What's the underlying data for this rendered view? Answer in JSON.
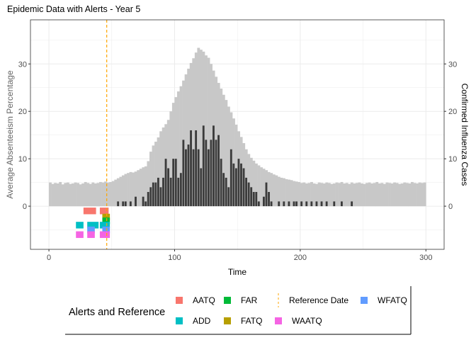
{
  "chart_data": {
    "type": "bar",
    "title": "Epidemic Data with Alerts - Year 5",
    "xlabel": "Time",
    "ylabel_left": "Average Absenteeism Percentage",
    "ylabel_right": "Confirmed Influenza Cases",
    "xlim": [
      -14.7,
      314.5
    ],
    "ylim": [
      -9.1,
      39.3
    ],
    "x_ticks": [
      0,
      100,
      200,
      300
    ],
    "y_ticks": [
      0,
      10,
      20,
      30
    ],
    "grid": true,
    "colors": {
      "absenteeism": "#C8C8C8",
      "cases": "#3B3B3B",
      "reference": "#FFA500",
      "grid": "#EBEBEB"
    },
    "days": [
      1,
      3,
      5,
      7,
      9,
      11,
      13,
      15,
      17,
      19,
      21,
      23,
      25,
      27,
      29,
      31,
      33,
      35,
      37,
      39,
      41,
      43,
      45,
      47,
      49,
      51,
      53,
      55,
      57,
      59,
      61,
      63,
      65,
      67,
      69,
      71,
      73,
      75,
      77,
      79,
      81,
      83,
      85,
      87,
      89,
      91,
      93,
      95,
      97,
      99,
      101,
      103,
      105,
      107,
      109,
      111,
      113,
      115,
      117,
      119,
      121,
      123,
      125,
      127,
      129,
      131,
      133,
      135,
      137,
      139,
      141,
      143,
      145,
      147,
      149,
      151,
      153,
      155,
      157,
      159,
      161,
      163,
      165,
      167,
      169,
      171,
      173,
      175,
      177,
      179,
      181,
      183,
      185,
      187,
      189,
      191,
      193,
      195,
      197,
      199,
      201,
      203,
      205,
      207,
      209,
      211,
      213,
      215,
      217,
      219,
      221,
      223,
      225,
      227,
      229,
      231,
      233,
      235,
      237,
      239,
      241,
      243,
      245,
      247,
      249,
      251,
      253,
      255,
      257,
      259,
      261,
      263,
      265,
      267,
      269,
      271,
      273,
      275,
      277,
      279,
      281,
      283,
      285,
      287,
      289,
      291,
      293,
      295,
      297,
      299
    ],
    "absenteeism": [
      5.0,
      4.7,
      4.9,
      4.8,
      5.1,
      4.6,
      4.9,
      5.0,
      4.7,
      4.8,
      5.0,
      4.9,
      4.6,
      4.8,
      5.1,
      4.9,
      4.7,
      5.0,
      4.8,
      4.9,
      5.1,
      5.0,
      5.2,
      5.0,
      5.1,
      5.3,
      5.6,
      5.9,
      6.2,
      6.5,
      6.8,
      7.0,
      7.2,
      7.1,
      7.3,
      7.6,
      7.9,
      8.2,
      8.4,
      9.5,
      11.5,
      12.8,
      13.6,
      14.5,
      15.8,
      16.6,
      17.3,
      18.2,
      20.0,
      21.8,
      23.0,
      24.2,
      25.3,
      26.5,
      27.8,
      29.0,
      30.2,
      31.2,
      32.4,
      33.4,
      33.0,
      32.6,
      31.8,
      31.3,
      30.0,
      28.6,
      27.3,
      26.0,
      24.8,
      23.5,
      22.4,
      21.0,
      19.8,
      18.5,
      17.2,
      15.8,
      14.6,
      13.3,
      12.0,
      11.0,
      10.2,
      9.6,
      9.0,
      8.6,
      8.2,
      7.9,
      7.6,
      7.2,
      7.0,
      6.7,
      6.5,
      6.2,
      6.0,
      5.9,
      5.7,
      5.6,
      5.5,
      5.3,
      5.2,
      5.1,
      4.9,
      5.0,
      4.8,
      4.9,
      5.1,
      4.8,
      4.7,
      5.0,
      4.9,
      4.8,
      5.0,
      4.9,
      4.7,
      4.8,
      5.0,
      4.9,
      5.1,
      4.8,
      4.9,
      4.7,
      5.0,
      4.8,
      4.9,
      5.0,
      4.8,
      4.7,
      4.9,
      5.0,
      4.8,
      4.9,
      5.1,
      4.8,
      4.9,
      4.7,
      5.0,
      4.9,
      4.8,
      5.0,
      4.9,
      4.7,
      4.8,
      5.0,
      4.9,
      4.8,
      5.1,
      4.9,
      4.8,
      5.0,
      4.9,
      5.0
    ],
    "cases": [
      0,
      0,
      0,
      0,
      0,
      0,
      0,
      0,
      0,
      0,
      0,
      0,
      0,
      0,
      0,
      0,
      0,
      0,
      0,
      0,
      0,
      0,
      0,
      0,
      0,
      0,
      0,
      1,
      0,
      1,
      1,
      0,
      1,
      0,
      2,
      0,
      0,
      2,
      1,
      3,
      4,
      5,
      5,
      6,
      4,
      6,
      10,
      8,
      6,
      10,
      10,
      6,
      7,
      14,
      12,
      13,
      16,
      12,
      16,
      12,
      8,
      17,
      14,
      12,
      14,
      17,
      14,
      15,
      10,
      7,
      6,
      4,
      12,
      9,
      8,
      10,
      9,
      8,
      6,
      5,
      4,
      3,
      3,
      1,
      0,
      2,
      5,
      3,
      1,
      0,
      0,
      1,
      0,
      1,
      0,
      1,
      0,
      1,
      1,
      0,
      1,
      0,
      1,
      0,
      1,
      0,
      1,
      0,
      1,
      0,
      1,
      0,
      0,
      1,
      0,
      0,
      1,
      0,
      0,
      0,
      1,
      0,
      0,
      0,
      0,
      0,
      0,
      0,
      0,
      0,
      0,
      0,
      0,
      0,
      0,
      0,
      0,
      0,
      0,
      0,
      0,
      0,
      0,
      0,
      0,
      0,
      0,
      0,
      0,
      0
    ],
    "reference_date": 46,
    "alerts": [
      {
        "name": "AATQ",
        "color": "#F8766D",
        "y": -1,
        "ranges": [
          [
            28,
            37
          ],
          [
            41,
            47
          ]
        ]
      },
      {
        "name": "FATQ",
        "color": "#B79F00",
        "y": -2.3,
        "ranges": [
          [
            43,
            48
          ]
        ]
      },
      {
        "name": "FAR",
        "color": "#00BA38",
        "y": -3.1,
        "ranges": [
          [
            43,
            48
          ]
        ]
      },
      {
        "name": "ADD",
        "color": "#00BFC4",
        "y": -4,
        "ranges": [
          [
            22,
            27
          ],
          [
            31,
            39
          ],
          [
            41,
            48
          ]
        ]
      },
      {
        "name": "WFATQ",
        "color": "#619CFF",
        "y": -5,
        "ranges": [
          [
            31,
            36
          ],
          [
            43,
            48
          ]
        ]
      },
      {
        "name": "WAATQ",
        "color": "#F564E3",
        "y": -6,
        "ranges": [
          [
            22,
            27
          ],
          [
            31,
            36
          ],
          [
            41,
            48
          ]
        ]
      }
    ],
    "legend": {
      "title": "Alerts and Reference",
      "placement": "bottom",
      "items": [
        {
          "label": "AATQ",
          "color": "#F8766D",
          "kind": "square"
        },
        {
          "label": "FAR",
          "color": "#00BA38",
          "kind": "square"
        },
        {
          "label": "Reference Date",
          "color": "#FFA500",
          "kind": "dashed-line"
        },
        {
          "label": "WFATQ",
          "color": "#619CFF",
          "kind": "square"
        },
        {
          "label": "ADD",
          "color": "#00BFC4",
          "kind": "square"
        },
        {
          "label": "FATQ",
          "color": "#B79F00",
          "kind": "square"
        },
        {
          "label": "WAATQ",
          "color": "#F564E3",
          "kind": "square"
        }
      ]
    }
  }
}
